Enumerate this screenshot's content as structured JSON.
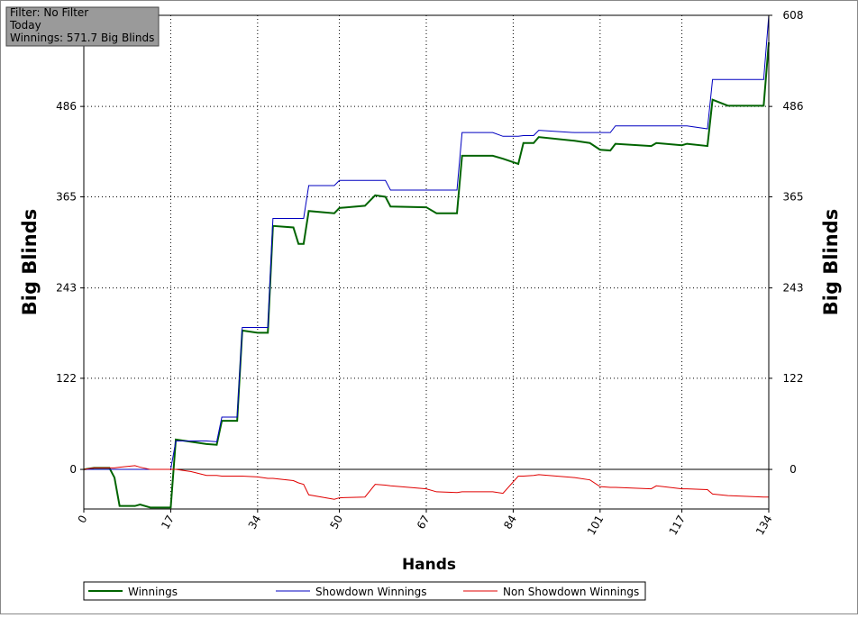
{
  "info": {
    "filter": "Filter: No Filter",
    "period": "Today",
    "winnings": "Winnings: 571.7 Big Blinds"
  },
  "chart_data": {
    "type": "line",
    "x_label": "Hands",
    "y_label": "Big Blinds",
    "grid": true,
    "xlim": [
      0,
      134
    ],
    "xticks": [
      0,
      17,
      34,
      50,
      67,
      84,
      101,
      117,
      134
    ],
    "ylim": [
      -53,
      608
    ],
    "yticks": [
      0,
      122,
      243,
      365,
      486,
      608
    ],
    "x": [
      0,
      2,
      5,
      6,
      7,
      10,
      11,
      13,
      17,
      18,
      21,
      24,
      26,
      27,
      30,
      31,
      34,
      36,
      37,
      41,
      42,
      43,
      44,
      49,
      50,
      55,
      57,
      59,
      60,
      67,
      69,
      73,
      74,
      80,
      82,
      85,
      86,
      88,
      89,
      96,
      99,
      101,
      103,
      104,
      111,
      112,
      117,
      118,
      122,
      123,
      126,
      133,
      134
    ],
    "series": [
      {
        "name": "Winnings",
        "color": "#006400",
        "width": 2,
        "values": [
          0,
          2,
          2,
          -11,
          -49,
          -49,
          -47,
          -51,
          -51,
          40,
          37,
          34,
          33,
          65,
          65,
          186,
          183,
          183,
          326,
          324,
          302,
          302,
          346,
          343,
          350,
          353,
          367,
          365,
          352,
          351,
          343,
          343,
          420,
          420,
          416,
          409,
          437,
          437,
          445,
          440,
          437,
          428,
          427,
          436,
          433,
          437,
          434,
          436,
          433,
          495,
          487,
          487,
          571.7
        ]
      },
      {
        "name": "Showdown Winnings",
        "color": "#0000c0",
        "width": 1,
        "values": [
          0,
          0,
          0,
          0,
          0,
          0,
          0,
          0,
          0,
          38,
          38,
          38,
          37,
          70,
          70,
          190,
          190,
          190,
          336,
          336,
          336,
          336,
          380,
          380,
          387,
          387,
          387,
          387,
          374,
          374,
          374,
          374,
          451,
          451,
          446,
          446,
          447,
          447,
          454,
          451,
          451,
          451,
          451,
          460,
          460,
          460,
          460,
          460,
          456,
          522,
          522,
          522,
          608
        ]
      },
      {
        "name": "Non Showdown Winnings",
        "color": "#e00000",
        "width": 1,
        "values": [
          0,
          2,
          2,
          2,
          3,
          5,
          3,
          0,
          0,
          0,
          -3,
          -8,
          -8,
          -9,
          -9,
          -9,
          -10,
          -12,
          -12,
          -15,
          -18,
          -20,
          -34,
          -40,
          -38,
          -37,
          -20,
          -21,
          -22,
          -26,
          -30,
          -31,
          -30,
          -30,
          -32,
          -9,
          -9,
          -8,
          -7,
          -11,
          -14,
          -23,
          -24,
          -24,
          -26,
          -22,
          -26,
          -26,
          -27,
          -33,
          -35,
          -37,
          -37
        ]
      }
    ]
  }
}
